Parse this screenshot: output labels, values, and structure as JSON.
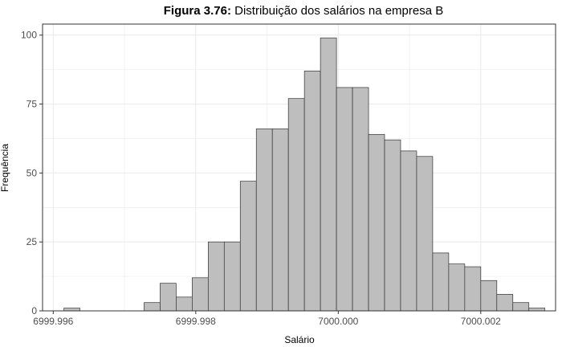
{
  "chart_data": {
    "type": "bar",
    "title_prefix": "Figura 3.76:",
    "title_rest": " Distribuição dos salários na empresa B",
    "xlabel": "Salário",
    "ylabel": "Frequência",
    "xlim": [
      6999.99585,
      7000.00305
    ],
    "ylim": [
      0,
      104
    ],
    "x_ticks": [
      6999.996,
      6999.998,
      7000.0,
      7000.002
    ],
    "x_tick_labels": [
      "6999.996",
      "6999.998",
      "7000.000",
      "7000.002"
    ],
    "y_ticks": [
      0,
      25,
      50,
      75,
      100
    ],
    "y_tick_labels": [
      "0",
      "25",
      "50",
      "75",
      "100"
    ],
    "grid": true,
    "bin_start": 6999.99615,
    "bin_width": 0.000225,
    "values": [
      1,
      0,
      0,
      0,
      0,
      3,
      10,
      5,
      12,
      25,
      25,
      47,
      66,
      66,
      77,
      87,
      99,
      81,
      81,
      64,
      62,
      58,
      56,
      21,
      17,
      16,
      11,
      6,
      3,
      1
    ],
    "colors": {
      "bar_fill": "#bebebe",
      "bar_stroke": "#333333",
      "grid": "#ebebeb",
      "panel_border": "#333333"
    }
  }
}
